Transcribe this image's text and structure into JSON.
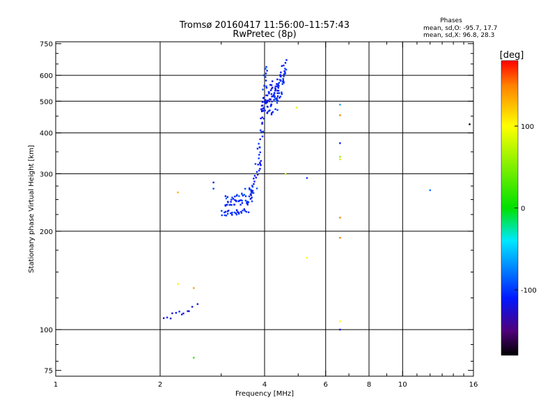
{
  "chart_data": {
    "type": "scatter",
    "title": "Tromsø 20160417 11:56:00–11:57:43",
    "subtitle": "RwPretec (8p)",
    "xlabel": "Frequency [MHz]",
    "ylabel": "Stationary phase Virtual Height [km]",
    "x_scale": "log",
    "y_scale": "log",
    "xlim": [
      1,
      16
    ],
    "ylim": [
      72,
      760
    ],
    "x_ticks": [
      1,
      2,
      4,
      6,
      8,
      10,
      16
    ],
    "y_ticks": [
      75,
      100,
      200,
      300,
      400,
      500,
      600,
      750
    ],
    "x_gridlines": [
      2,
      4,
      6,
      8,
      10
    ],
    "y_gridlines": [
      100,
      200,
      300,
      400,
      500,
      600
    ],
    "phase_stats": {
      "heading": "Phases",
      "line_o": "mean, sd,O: -95.7, 17.7",
      "line_x": "mean, sd,X:  96.8, 28.3"
    },
    "colorbar": {
      "label": "[deg]",
      "range": [
        -180,
        180
      ],
      "ticks": [
        100,
        0,
        -100
      ],
      "tick_labels": [
        "100",
        "0",
        "-100"
      ]
    },
    "traces": [
      {
        "from": [
          3.0,
          226
        ],
        "to": [
          3.55,
          232
        ],
        "n": 28,
        "phase": -105,
        "spread": 0.05
      },
      {
        "from": [
          3.05,
          238
        ],
        "to": [
          3.7,
          252
        ],
        "n": 30,
        "phase": -108,
        "spread": 0.05
      },
      {
        "from": [
          3.1,
          250
        ],
        "to": [
          3.75,
          270
        ],
        "n": 24,
        "phase": -100,
        "spread": 0.05
      },
      {
        "from": [
          3.6,
          245
        ],
        "to": [
          3.9,
          330
        ],
        "n": 22,
        "phase": -112,
        "spread": 0.04
      },
      {
        "from": [
          3.8,
          320
        ],
        "to": [
          3.98,
          450
        ],
        "n": 18,
        "phase": -110,
        "spread": 0.04
      },
      {
        "from": [
          3.95,
          450
        ],
        "to": [
          4.05,
          640
        ],
        "n": 22,
        "phase": -105,
        "spread": 0.05
      },
      {
        "from": [
          3.98,
          460
        ],
        "to": [
          4.25,
          560
        ],
        "n": 45,
        "phase": -112,
        "spread": 0.08
      },
      {
        "from": [
          4.2,
          460
        ],
        "to": [
          4.55,
          620
        ],
        "n": 45,
        "phase": -110,
        "spread": 0.08
      },
      {
        "from": [
          4.3,
          520
        ],
        "to": [
          4.6,
          655
        ],
        "n": 18,
        "phase": -100,
        "spread": 0.05
      },
      {
        "from": [
          2.05,
          108
        ],
        "to": [
          2.55,
          118
        ],
        "n": 12,
        "phase": -115,
        "spread": 0.04
      }
    ],
    "points": [
      {
        "x": 2.85,
        "y": 282,
        "phase": -110
      },
      {
        "x": 2.85,
        "y": 270,
        "phase": -95
      },
      {
        "x": 2.25,
        "y": 263,
        "phase": 130
      },
      {
        "x": 2.25,
        "y": 138,
        "phase": 95
      },
      {
        "x": 2.5,
        "y": 134,
        "phase": 140
      },
      {
        "x": 2.5,
        "y": 82,
        "phase": 20
      },
      {
        "x": 4.6,
        "y": 299,
        "phase": 80
      },
      {
        "x": 4.95,
        "y": 478,
        "phase": 90
      },
      {
        "x": 5.3,
        "y": 291,
        "phase": -100
      },
      {
        "x": 5.3,
        "y": 166,
        "phase": 100
      },
      {
        "x": 6.6,
        "y": 488,
        "phase": -60
      },
      {
        "x": 6.6,
        "y": 453,
        "phase": 150
      },
      {
        "x": 6.6,
        "y": 372,
        "phase": -110
      },
      {
        "x": 6.6,
        "y": 338,
        "phase": 60
      },
      {
        "x": 6.6,
        "y": 332,
        "phase": 80
      },
      {
        "x": 6.6,
        "y": 220,
        "phase": 150
      },
      {
        "x": 6.6,
        "y": 191,
        "phase": 150
      },
      {
        "x": 6.6,
        "y": 106,
        "phase": 100
      },
      {
        "x": 6.6,
        "y": 100,
        "phase": -120
      },
      {
        "x": 12.0,
        "y": 267,
        "phase": -80
      },
      {
        "x": 15.6,
        "y": 425,
        "phase": -180
      }
    ]
  }
}
